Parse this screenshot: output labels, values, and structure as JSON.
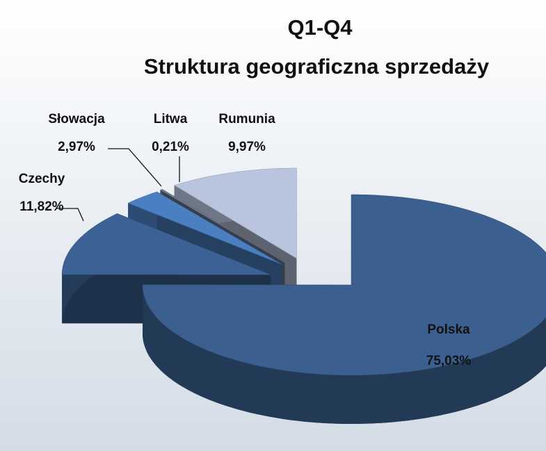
{
  "chart_data": {
    "type": "pie3d",
    "title": "Q1-Q4",
    "subtitle": "Struktura geograficzna sprzedaży",
    "categories": [
      "Polska",
      "Czechy",
      "Słowacja",
      "Litwa",
      "Rumunia"
    ],
    "values": [
      75.03,
      11.82,
      2.97,
      0.21,
      9.97
    ],
    "value_labels": [
      "75,03%",
      "11,82%",
      "2,97%",
      "0,21%",
      "9,97%"
    ],
    "colors": [
      "#3b6090",
      "#3c6295",
      "#4a7fc2",
      "#6b7b92",
      "#b9c5de"
    ]
  }
}
